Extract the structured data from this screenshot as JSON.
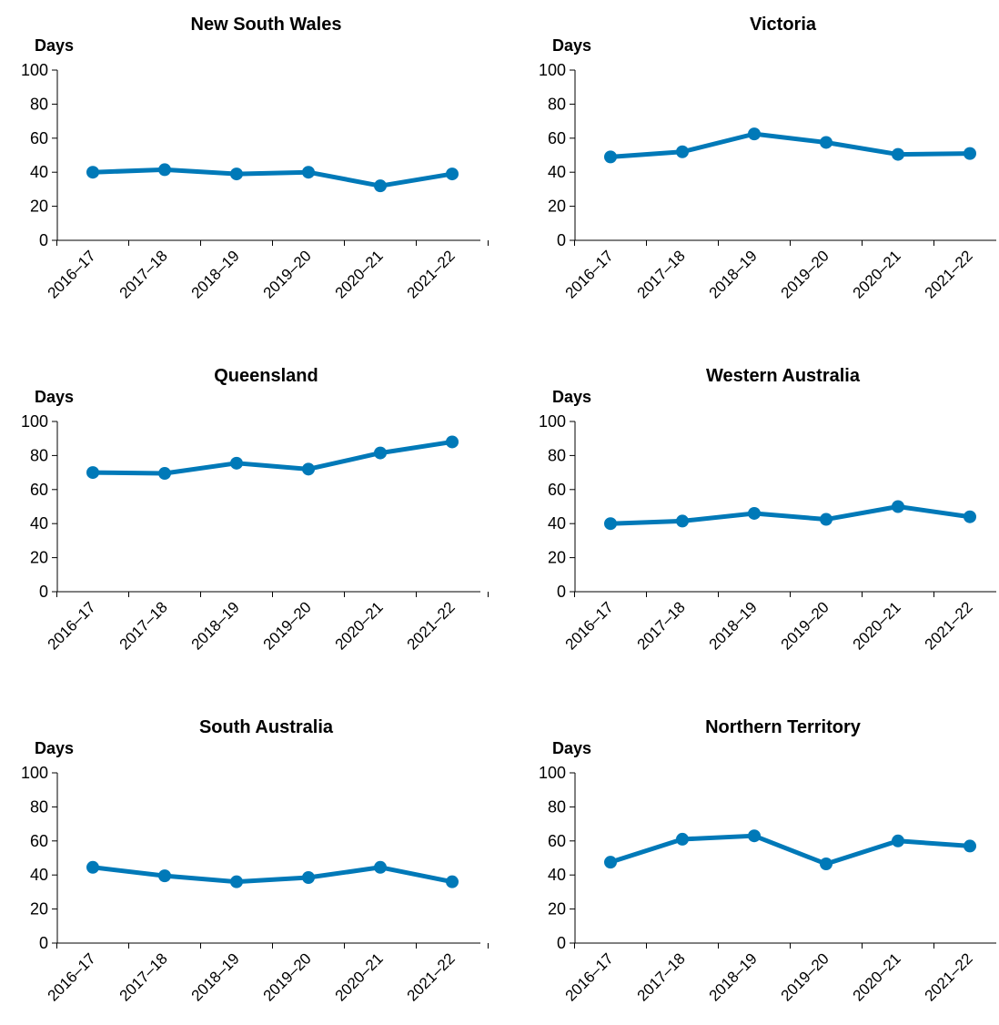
{
  "chart_data": [
    {
      "type": "line",
      "title": "New South Wales",
      "ylabel": "Days",
      "xlabel": "",
      "categories": [
        "2016–17",
        "2017–18",
        "2018–19",
        "2019–20",
        "2020–21",
        "2021–22"
      ],
      "values": [
        40,
        41.5,
        39,
        40,
        32,
        39
      ],
      "yticks": [
        0,
        20,
        40,
        60,
        80,
        100
      ],
      "ylim": [
        0,
        100
      ],
      "grid": false,
      "color": "#0079b8"
    },
    {
      "type": "line",
      "title": "Victoria",
      "ylabel": "Days",
      "xlabel": "",
      "categories": [
        "2016–17",
        "2017–18",
        "2018–19",
        "2019–20",
        "2020–21",
        "2021–22"
      ],
      "values": [
        49,
        52,
        62.5,
        57.5,
        50.5,
        51
      ],
      "yticks": [
        0,
        20,
        40,
        60,
        80,
        100
      ],
      "ylim": [
        0,
        100
      ],
      "grid": false,
      "color": "#0079b8"
    },
    {
      "type": "line",
      "title": "Queensland",
      "ylabel": "Days",
      "xlabel": "",
      "categories": [
        "2016–17",
        "2017–18",
        "2018–19",
        "2019–20",
        "2020–21",
        "2021–22"
      ],
      "values": [
        70,
        69.5,
        75.5,
        72,
        81.5,
        88
      ],
      "yticks": [
        0,
        20,
        40,
        60,
        80,
        100
      ],
      "ylim": [
        0,
        100
      ],
      "grid": false,
      "color": "#0079b8"
    },
    {
      "type": "line",
      "title": "Western Australia",
      "ylabel": "Days",
      "xlabel": "",
      "categories": [
        "2016–17",
        "2017–18",
        "2018–19",
        "2019–20",
        "2020–21",
        "2021–22"
      ],
      "values": [
        40,
        41.5,
        46,
        42.5,
        50,
        44
      ],
      "yticks": [
        0,
        20,
        40,
        60,
        80,
        100
      ],
      "ylim": [
        0,
        100
      ],
      "grid": false,
      "color": "#0079b8"
    },
    {
      "type": "line",
      "title": "South Australia",
      "ylabel": "Days",
      "xlabel": "",
      "categories": [
        "2016–17",
        "2017–18",
        "2018–19",
        "2019–20",
        "2020–21",
        "2021–22"
      ],
      "values": [
        44.5,
        39.5,
        36,
        38.5,
        44.5,
        36
      ],
      "yticks": [
        0,
        20,
        40,
        60,
        80,
        100
      ],
      "ylim": [
        0,
        100
      ],
      "grid": false,
      "color": "#0079b8"
    },
    {
      "type": "line",
      "title": "Northern Territory",
      "ylabel": "Days",
      "xlabel": "",
      "categories": [
        "2016–17",
        "2017–18",
        "2018–19",
        "2019–20",
        "2020–21",
        "2021–22"
      ],
      "values": [
        47.5,
        61,
        63,
        46.5,
        60,
        57
      ],
      "yticks": [
        0,
        20,
        40,
        60,
        80,
        100
      ],
      "ylim": [
        0,
        100
      ],
      "grid": false,
      "color": "#0079b8"
    }
  ]
}
